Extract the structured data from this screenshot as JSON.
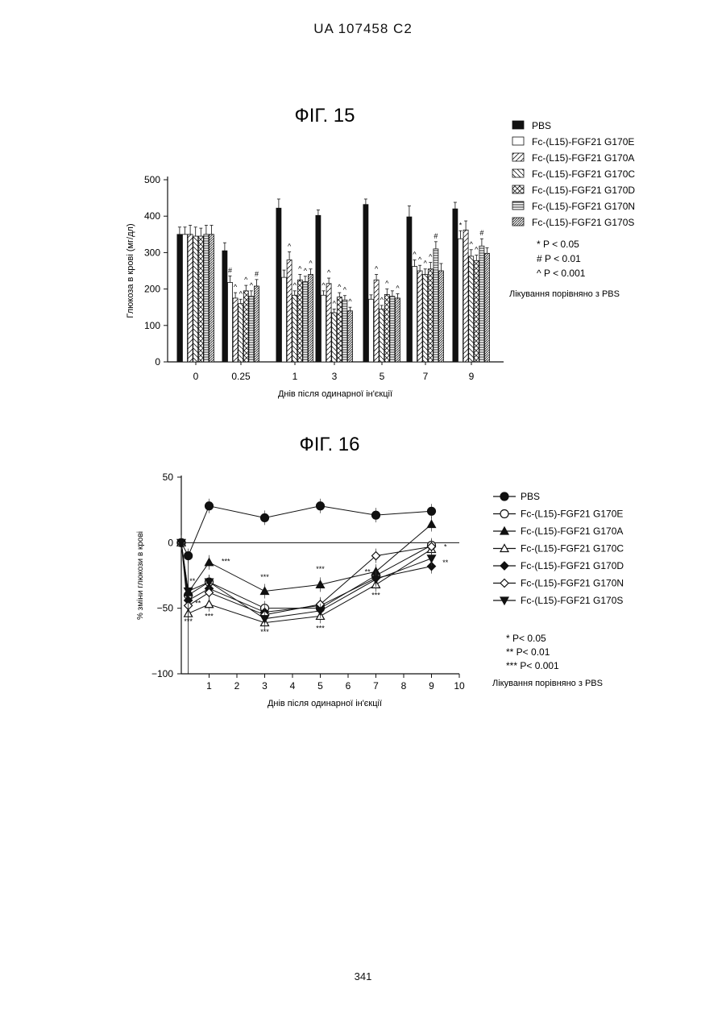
{
  "header": {
    "patent": "UA   107458   C2"
  },
  "page_number": "341",
  "chart_data": [
    {
      "type": "bar",
      "title": "ФІГ. 15",
      "xlabel": "Днів після одинарної ін'єкції",
      "ylabel": "Глюкоза в крові (мг/дл)",
      "ylim": [
        0,
        500
      ],
      "yticks": [
        "0",
        "100",
        "200",
        "300",
        "400",
        "500"
      ],
      "categories": [
        "0",
        "0.25",
        "1",
        "3",
        "5",
        "7",
        "9"
      ],
      "series": [
        {
          "name": "PBS",
          "values": [
            350,
            305,
            422,
            402,
            432,
            398,
            420
          ],
          "err": [
            20,
            22,
            25,
            15,
            15,
            30,
            18
          ],
          "marks": [
            "",
            "",
            "",
            "",
            "",
            "",
            ""
          ]
        },
        {
          "name": "Fc-(L15)-FGF21 G170E",
          "values": [
            350,
            218,
            232,
            183,
            172,
            262,
            338
          ],
          "err": [
            20,
            18,
            20,
            12,
            12,
            18,
            22
          ],
          "marks": [
            "",
            "#",
            "",
            "^",
            "",
            "^",
            "*"
          ]
        },
        {
          "name": "Fc-(L15)-FGF21 G170A",
          "values": [
            350,
            175,
            280,
            215,
            225,
            250,
            362
          ],
          "err": [
            25,
            15,
            22,
            15,
            15,
            15,
            25
          ],
          "marks": [
            "",
            "^",
            "^",
            "^",
            "^",
            "^",
            ""
          ]
        },
        {
          "name": "Fc-(L15)-FGF21 G170C",
          "values": [
            345,
            160,
            183,
            135,
            145,
            240,
            290
          ],
          "err": [
            25,
            12,
            12,
            10,
            10,
            15,
            18
          ],
          "marks": [
            "",
            "^",
            "^",
            "^",
            "^",
            "^",
            "^"
          ]
        },
        {
          "name": "Fc-(L15)-FGF21 G170D",
          "values": [
            345,
            195,
            225,
            178,
            185,
            255,
            278
          ],
          "err": [
            22,
            15,
            15,
            12,
            15,
            18,
            15
          ],
          "marks": [
            "",
            "^",
            "^",
            "^",
            "^",
            "^",
            "^"
          ]
        },
        {
          "name": "Fc-(L15)-FGF21 G170N",
          "values": [
            350,
            180,
            220,
            170,
            180,
            310,
            318
          ],
          "err": [
            25,
            15,
            15,
            12,
            15,
            20,
            20
          ],
          "marks": [
            "",
            "^",
            "^",
            "^",
            "",
            "#",
            "#"
          ]
        },
        {
          "name": "Fc-(L15)-FGF21 G170S",
          "values": [
            350,
            208,
            240,
            140,
            175,
            250,
            298
          ],
          "err": [
            25,
            18,
            15,
            10,
            12,
            20,
            15
          ],
          "marks": [
            "",
            "#",
            "^",
            "^",
            "^",
            "",
            ""
          ]
        }
      ],
      "significance": [
        "* P < 0.05",
        "# P < 0.01",
        "^ P < 0.001"
      ],
      "note": "Лікування порівняно з PBS"
    },
    {
      "type": "line",
      "title": "ФІГ. 16",
      "xlabel": "Днів після одинарної ін'єкції",
      "ylabel": "% зміни глюкози в крові",
      "xlim": [
        0,
        10
      ],
      "ylim": [
        -100,
        50
      ],
      "xticks": [
        "1",
        "2",
        "3",
        "4",
        "5",
        "6",
        "7",
        "8",
        "9",
        "10"
      ],
      "yticks": [
        "50",
        "0",
        "−50",
        "−100"
      ],
      "x": [
        0,
        0.25,
        1,
        3,
        5,
        7,
        9
      ],
      "series": [
        {
          "name": "PBS",
          "marker": "circle",
          "fill": "filled",
          "values": [
            0,
            -10,
            28,
            19,
            28,
            21,
            24
          ]
        },
        {
          "name": "Fc-(L15)-FGF21 G170E",
          "marker": "circle",
          "fill": "open",
          "values": [
            0,
            -40,
            -30,
            -50,
            -50,
            -25,
            -2
          ]
        },
        {
          "name": "Fc-(L15)-FGF21 G170A",
          "marker": "triangle-up",
          "fill": "filled",
          "values": [
            0,
            -38,
            -15,
            -37,
            -32,
            -22,
            14
          ]
        },
        {
          "name": "Fc-(L15)-FGF21 G170C",
          "marker": "triangle-up",
          "fill": "open",
          "values": [
            0,
            -54,
            -47,
            -61,
            -56,
            -32,
            -5
          ]
        },
        {
          "name": "Fc-(L15)-FGF21 G170D",
          "marker": "diamond",
          "fill": "filled",
          "values": [
            0,
            -44,
            -35,
            -53,
            -48,
            -27,
            -18
          ]
        },
        {
          "name": "Fc-(L15)-FGF21 G170N",
          "marker": "diamond",
          "fill": "open",
          "values": [
            0,
            -48,
            -38,
            -55,
            -47,
            -10,
            -3
          ]
        },
        {
          "name": "Fc-(L15)-FGF21 G170S",
          "marker": "triangle-down",
          "fill": "filled",
          "values": [
            0,
            -37,
            -30,
            -58,
            -52,
            -28,
            -12
          ]
        }
      ],
      "annotations": [
        {
          "x": 0.25,
          "y": -62,
          "text": "***"
        },
        {
          "x": 0.6,
          "y": -48,
          "text": "**"
        },
        {
          "x": 0.4,
          "y": -31,
          "text": "**"
        },
        {
          "x": 1.6,
          "y": -16,
          "text": "***"
        },
        {
          "x": 1,
          "y": -58,
          "text": "***"
        },
        {
          "x": 3,
          "y": -28,
          "text": "***"
        },
        {
          "x": 3,
          "y": -70,
          "text": "***"
        },
        {
          "x": 5,
          "y": -22,
          "text": "***"
        },
        {
          "x": 5,
          "y": -67,
          "text": "***"
        },
        {
          "x": 6.7,
          "y": -24,
          "text": "**"
        },
        {
          "x": 7,
          "y": -42,
          "text": "***"
        },
        {
          "x": 9.5,
          "y": -5,
          "text": "*"
        },
        {
          "x": 9.5,
          "y": -17,
          "text": "**"
        }
      ],
      "significance": [
        "* P< 0.05",
        "** P< 0.01",
        "*** P< 0.001"
      ],
      "note": "Лікування порівняно з PBS"
    }
  ]
}
